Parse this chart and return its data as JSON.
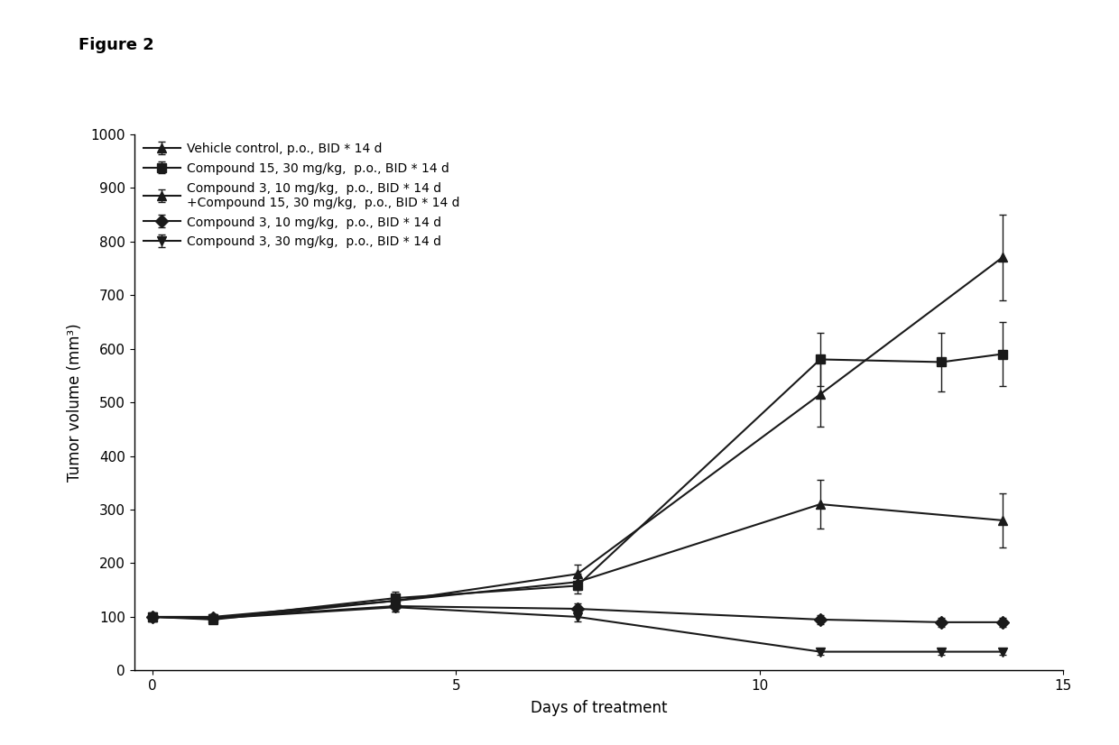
{
  "xlabel": "Days of treatment",
  "ylabel": "Tumor volume (mm³)",
  "xlim": [
    -0.3,
    15
  ],
  "ylim": [
    0,
    1000
  ],
  "yticks": [
    0,
    100,
    200,
    300,
    400,
    500,
    600,
    700,
    800,
    900,
    1000
  ],
  "xticks": [
    0,
    5,
    10,
    15
  ],
  "figure_label": "Figure 2",
  "series": [
    {
      "label": "Vehicle control, p.o., BID * 14 d",
      "x": [
        0,
        1,
        4,
        7,
        11,
        14
      ],
      "y": [
        100,
        100,
        130,
        180,
        515,
        770
      ],
      "yerr": [
        5,
        5,
        12,
        18,
        60,
        80
      ],
      "marker": "^",
      "linestyle": "-",
      "linewidth": 1.5
    },
    {
      "label": "Compound 15, 30 mg/kg,  p.o., BID * 14 d",
      "x": [
        0,
        1,
        4,
        7,
        11,
        13,
        14
      ],
      "y": [
        100,
        97,
        135,
        158,
        580,
        575,
        590
      ],
      "yerr": [
        5,
        5,
        12,
        15,
        50,
        55,
        60
      ],
      "marker": "s",
      "linestyle": "-",
      "linewidth": 1.5
    },
    {
      "label": "Compound 3, 10 mg/kg,  p.o., BID * 14 d\n+Compound 15, 30 mg/kg,  p.o., BID * 14 d",
      "x": [
        0,
        1,
        4,
        7,
        11,
        14
      ],
      "y": [
        100,
        95,
        130,
        165,
        310,
        280
      ],
      "yerr": [
        5,
        5,
        12,
        15,
        45,
        50
      ],
      "marker": "^",
      "linestyle": "-",
      "linewidth": 1.5
    },
    {
      "label": "Compound 3, 10 mg/kg,  p.o., BID * 14 d",
      "x": [
        0,
        1,
        4,
        7,
        11,
        13,
        14
      ],
      "y": [
        100,
        98,
        120,
        115,
        95,
        90,
        90
      ],
      "yerr": [
        5,
        5,
        10,
        10,
        8,
        8,
        8
      ],
      "marker": "D",
      "linestyle": "-",
      "linewidth": 1.5
    },
    {
      "label": "Compound 3, 30 mg/kg,  p.o., BID * 14 d",
      "x": [
        0,
        1,
        4,
        7,
        11,
        13,
        14
      ],
      "y": [
        100,
        97,
        118,
        100,
        35,
        35,
        35
      ],
      "yerr": [
        5,
        5,
        8,
        8,
        5,
        5,
        5
      ],
      "marker": "v",
      "linestyle": "-",
      "linewidth": 1.5
    }
  ],
  "color": "#1a1a1a",
  "background_color": "#ffffff",
  "tick_fontsize": 11,
  "label_fontsize": 12,
  "legend_fontsize": 10,
  "markersize": 7,
  "capsize": 3
}
